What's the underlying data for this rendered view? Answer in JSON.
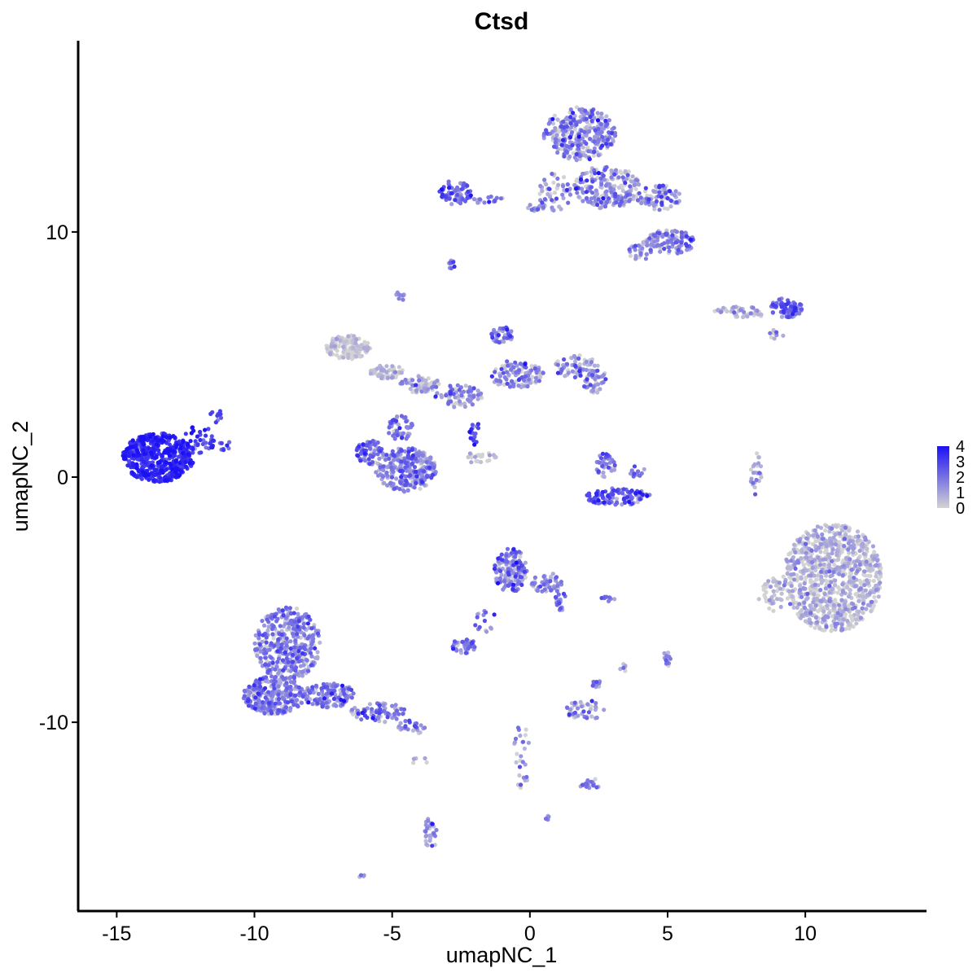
{
  "chart_data": {
    "type": "scatter",
    "title": "Ctsd",
    "xlabel": "umapNC_1",
    "ylabel": "umapNC_2",
    "xlim": [
      -16.4,
      14.4
    ],
    "ylim": [
      -17.7,
      17.8
    ],
    "xticks": [
      -15,
      -10,
      -5,
      0,
      5,
      10
    ],
    "xtick_labels": [
      "-15",
      "-10",
      "-5",
      "0",
      "5",
      "10"
    ],
    "yticks": [
      -10,
      0,
      10
    ],
    "ytick_labels": [
      "-10",
      "0",
      "10"
    ],
    "grid": false,
    "legend": {
      "position": "right",
      "min": 0,
      "max": 4,
      "ticks": [
        0,
        1,
        2,
        3,
        4
      ],
      "tick_labels": [
        "0",
        "1",
        "2",
        "3",
        "4"
      ],
      "low_color": "#d3d3d3",
      "high_color": "#1c10f5"
    },
    "clusters": [
      {
        "cx": -13.5,
        "cy": 0.8,
        "rx": 1.3,
        "ry": 1.0,
        "n": 520,
        "expr": 3.3,
        "spread": 0.5
      },
      {
        "cx": -12.0,
        "cy": 1.5,
        "rx": 0.6,
        "ry": 0.6,
        "n": 40,
        "expr": 3.0,
        "spread": 0.6
      },
      {
        "cx": -11.4,
        "cy": 2.5,
        "rx": 0.2,
        "ry": 0.3,
        "n": 10,
        "expr": 2.8,
        "spread": 0.5
      },
      {
        "cx": -11.1,
        "cy": 1.3,
        "rx": 0.3,
        "ry": 0.2,
        "n": 8,
        "expr": 2.5,
        "spread": 0.5
      },
      {
        "cx": -8.8,
        "cy": -6.8,
        "rx": 1.2,
        "ry": 1.5,
        "n": 380,
        "expr": 1.4,
        "spread": 0.9
      },
      {
        "cx": -9.3,
        "cy": -8.9,
        "rx": 1.1,
        "ry": 0.8,
        "n": 260,
        "expr": 1.4,
        "spread": 0.9
      },
      {
        "cx": -7.3,
        "cy": -8.9,
        "rx": 1.0,
        "ry": 0.5,
        "n": 130,
        "expr": 1.5,
        "spread": 0.9
      },
      {
        "cx": -5.5,
        "cy": -9.6,
        "rx": 1.0,
        "ry": 0.4,
        "n": 80,
        "expr": 1.5,
        "spread": 0.9
      },
      {
        "cx": -4.3,
        "cy": -10.2,
        "rx": 0.5,
        "ry": 0.3,
        "n": 25,
        "expr": 1.6,
        "spread": 0.9
      },
      {
        "cx": -4.5,
        "cy": 0.3,
        "rx": 1.1,
        "ry": 0.9,
        "n": 280,
        "expr": 1.4,
        "spread": 0.9
      },
      {
        "cx": -5.8,
        "cy": 1.0,
        "rx": 0.5,
        "ry": 0.5,
        "n": 70,
        "expr": 1.9,
        "spread": 0.9
      },
      {
        "cx": -4.7,
        "cy": 2.0,
        "rx": 0.5,
        "ry": 0.5,
        "n": 50,
        "expr": 1.7,
        "spread": 0.9
      },
      {
        "cx": -6.6,
        "cy": 5.3,
        "rx": 0.8,
        "ry": 0.5,
        "n": 140,
        "expr": 0.2,
        "spread": 0.4
      },
      {
        "cx": -5.2,
        "cy": 4.3,
        "rx": 0.6,
        "ry": 0.3,
        "n": 60,
        "expr": 0.3,
        "spread": 0.5
      },
      {
        "cx": -4.0,
        "cy": 3.8,
        "rx": 0.7,
        "ry": 0.35,
        "n": 70,
        "expr": 0.5,
        "spread": 0.8
      },
      {
        "cx": -2.6,
        "cy": 3.3,
        "rx": 0.9,
        "ry": 0.45,
        "n": 70,
        "expr": 1.2,
        "spread": 1.0
      },
      {
        "cx": -0.5,
        "cy": 4.2,
        "rx": 1.0,
        "ry": 0.55,
        "n": 110,
        "expr": 1.2,
        "spread": 1.0
      },
      {
        "cx": -1.0,
        "cy": 5.8,
        "rx": 0.4,
        "ry": 0.35,
        "n": 45,
        "expr": 1.5,
        "spread": 0.9
      },
      {
        "cx": 1.7,
        "cy": 4.5,
        "rx": 0.8,
        "ry": 0.5,
        "n": 80,
        "expr": 1.1,
        "spread": 1.0
      },
      {
        "cx": 2.4,
        "cy": 3.9,
        "rx": 0.5,
        "ry": 0.5,
        "n": 40,
        "expr": 1.3,
        "spread": 1.0
      },
      {
        "cx": -2.0,
        "cy": 1.8,
        "rx": 0.2,
        "ry": 0.5,
        "n": 18,
        "expr": 2.6,
        "spread": 0.7
      },
      {
        "cx": -1.8,
        "cy": 0.8,
        "rx": 0.6,
        "ry": 0.25,
        "n": 22,
        "expr": 0.3,
        "spread": 0.5
      },
      {
        "cx": 1.8,
        "cy": 14.0,
        "rx": 1.3,
        "ry": 1.1,
        "n": 320,
        "expr": 1.2,
        "spread": 1.1
      },
      {
        "cx": 2.8,
        "cy": 11.8,
        "rx": 1.2,
        "ry": 0.9,
        "n": 210,
        "expr": 1.0,
        "spread": 1.1
      },
      {
        "cx": 4.7,
        "cy": 11.4,
        "rx": 0.8,
        "ry": 0.5,
        "n": 80,
        "expr": 1.1,
        "spread": 1.0
      },
      {
        "cx": 5.1,
        "cy": 9.6,
        "rx": 0.9,
        "ry": 0.5,
        "n": 110,
        "expr": 1.3,
        "spread": 0.9
      },
      {
        "cx": 4.0,
        "cy": 9.2,
        "rx": 0.4,
        "ry": 0.4,
        "n": 30,
        "expr": 1.3,
        "spread": 0.9
      },
      {
        "cx": 0.9,
        "cy": 11.6,
        "rx": 0.6,
        "ry": 0.8,
        "n": 50,
        "expr": 1.0,
        "spread": 1.0
      },
      {
        "cx": -2.7,
        "cy": 11.6,
        "rx": 0.6,
        "ry": 0.5,
        "n": 70,
        "expr": 2.1,
        "spread": 0.8
      },
      {
        "cx": -1.5,
        "cy": 11.3,
        "rx": 0.6,
        "ry": 0.15,
        "n": 18,
        "expr": 1.3,
        "spread": 0.9
      },
      {
        "cx": 0.3,
        "cy": 11.0,
        "rx": 0.5,
        "ry": 0.15,
        "n": 16,
        "expr": 1.2,
        "spread": 0.9
      },
      {
        "cx": -2.9,
        "cy": 8.7,
        "rx": 0.2,
        "ry": 0.2,
        "n": 10,
        "expr": 1.7,
        "spread": 0.6
      },
      {
        "cx": -4.7,
        "cy": 7.4,
        "rx": 0.2,
        "ry": 0.2,
        "n": 10,
        "expr": 1.3,
        "spread": 0.7
      },
      {
        "cx": 9.3,
        "cy": 6.9,
        "rx": 0.6,
        "ry": 0.4,
        "n": 80,
        "expr": 2.0,
        "spread": 0.8
      },
      {
        "cx": 7.6,
        "cy": 6.8,
        "rx": 0.9,
        "ry": 0.15,
        "n": 35,
        "expr": 0.6,
        "spread": 0.7
      },
      {
        "cx": 8.0,
        "cy": 6.6,
        "rx": 0.6,
        "ry": 0.15,
        "n": 15,
        "expr": 0.3,
        "spread": 0.4
      },
      {
        "cx": 8.9,
        "cy": 5.8,
        "rx": 0.3,
        "ry": 0.2,
        "n": 8,
        "expr": 1.0,
        "spread": 0.8
      },
      {
        "cx": 3.2,
        "cy": -0.8,
        "rx": 1.2,
        "ry": 0.35,
        "n": 110,
        "expr": 2.2,
        "spread": 0.8
      },
      {
        "cx": 2.7,
        "cy": 0.5,
        "rx": 0.4,
        "ry": 0.5,
        "n": 35,
        "expr": 1.5,
        "spread": 0.9
      },
      {
        "cx": 3.9,
        "cy": 0.2,
        "rx": 0.3,
        "ry": 0.3,
        "n": 15,
        "expr": 1.6,
        "spread": 0.9
      },
      {
        "cx": 11.0,
        "cy": -4.1,
        "rx": 1.8,
        "ry": 2.2,
        "n": 900,
        "expr": 0.35,
        "spread": 0.7
      },
      {
        "cx": 8.8,
        "cy": -4.8,
        "rx": 0.5,
        "ry": 0.7,
        "n": 40,
        "expr": 0.3,
        "spread": 0.6
      },
      {
        "cx": 8.2,
        "cy": 0.1,
        "rx": 0.2,
        "ry": 0.9,
        "n": 25,
        "expr": 0.6,
        "spread": 0.8
      },
      {
        "cx": -0.7,
        "cy": -3.8,
        "rx": 0.6,
        "ry": 0.9,
        "n": 150,
        "expr": 1.3,
        "spread": 1.0
      },
      {
        "cx": 0.6,
        "cy": -4.3,
        "rx": 0.6,
        "ry": 0.4,
        "n": 50,
        "expr": 1.1,
        "spread": 1.0
      },
      {
        "cx": 1.1,
        "cy": -5.0,
        "rx": 0.2,
        "ry": 0.5,
        "n": 18,
        "expr": 1.4,
        "spread": 0.9
      },
      {
        "cx": -2.4,
        "cy": -6.9,
        "rx": 0.5,
        "ry": 0.3,
        "n": 40,
        "expr": 1.7,
        "spread": 0.8
      },
      {
        "cx": -1.6,
        "cy": -5.9,
        "rx": 0.4,
        "ry": 0.5,
        "n": 15,
        "expr": 1.4,
        "spread": 0.9
      },
      {
        "cx": 2.0,
        "cy": -9.5,
        "rx": 0.7,
        "ry": 0.4,
        "n": 45,
        "expr": 1.0,
        "spread": 1.0
      },
      {
        "cx": 2.4,
        "cy": -8.5,
        "rx": 0.2,
        "ry": 0.3,
        "n": 10,
        "expr": 1.2,
        "spread": 0.9
      },
      {
        "cx": 2.2,
        "cy": -12.5,
        "rx": 0.5,
        "ry": 0.2,
        "n": 22,
        "expr": 1.7,
        "spread": 0.8
      },
      {
        "cx": -0.3,
        "cy": -11.4,
        "rx": 0.3,
        "ry": 1.3,
        "n": 28,
        "expr": 1.0,
        "spread": 1.0
      },
      {
        "cx": -3.6,
        "cy": -14.5,
        "rx": 0.3,
        "ry": 0.6,
        "n": 32,
        "expr": 1.4,
        "spread": 0.9
      },
      {
        "cx": 5.0,
        "cy": -7.4,
        "rx": 0.15,
        "ry": 0.35,
        "n": 16,
        "expr": 1.3,
        "spread": 0.9
      },
      {
        "cx": 3.4,
        "cy": -7.7,
        "rx": 0.15,
        "ry": 0.25,
        "n": 6,
        "expr": 1.2,
        "spread": 0.9
      },
      {
        "cx": 2.8,
        "cy": -5.0,
        "rx": 0.3,
        "ry": 0.12,
        "n": 8,
        "expr": 1.6,
        "spread": 0.8
      },
      {
        "cx": 0.6,
        "cy": -13.9,
        "rx": 0.1,
        "ry": 0.1,
        "n": 5,
        "expr": 1.5,
        "spread": 0.6
      },
      {
        "cx": -6.1,
        "cy": -16.3,
        "rx": 0.1,
        "ry": 0.1,
        "n": 4,
        "expr": 1.2,
        "spread": 0.6
      },
      {
        "cx": -4.0,
        "cy": -11.6,
        "rx": 0.3,
        "ry": 0.2,
        "n": 5,
        "expr": 0.3,
        "spread": 0.4
      }
    ]
  }
}
